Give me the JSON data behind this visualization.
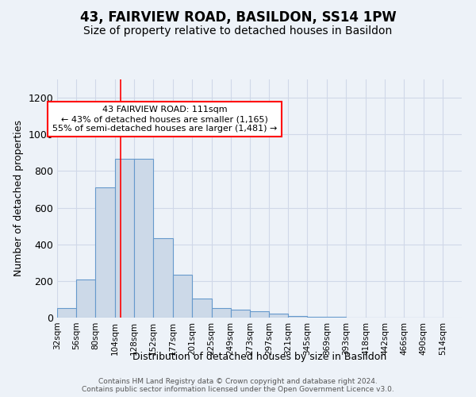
{
  "title1": "43, FAIRVIEW ROAD, BASILDON, SS14 1PW",
  "title2": "Size of property relative to detached houses in Basildon",
  "xlabel": "Distribution of detached houses by size in Basildon",
  "ylabel": "Number of detached properties",
  "footnote": "Contains HM Land Registry data © Crown copyright and database right 2024.\nContains public sector information licensed under the Open Government Licence v3.0.",
  "bin_labels": [
    "32sqm",
    "56sqm",
    "80sqm",
    "104sqm",
    "128sqm",
    "152sqm",
    "177sqm",
    "201sqm",
    "225sqm",
    "249sqm",
    "273sqm",
    "297sqm",
    "321sqm",
    "345sqm",
    "369sqm",
    "393sqm",
    "418sqm",
    "442sqm",
    "466sqm",
    "490sqm",
    "514sqm"
  ],
  "bar_values": [
    50,
    210,
    710,
    868,
    868,
    435,
    233,
    105,
    50,
    45,
    35,
    20,
    10,
    5,
    3,
    2,
    2,
    1,
    1,
    1
  ],
  "bar_color": "#ccd9e8",
  "bar_edge_color": "#6699cc",
  "property_line_x": 111,
  "annotation_text": "43 FAIRVIEW ROAD: 111sqm\n← 43% of detached houses are smaller (1,165)\n55% of semi-detached houses are larger (1,481) →",
  "annotation_box_color": "white",
  "annotation_box_edge_color": "red",
  "ylim": [
    0,
    1300
  ],
  "yticks": [
    0,
    200,
    400,
    600,
    800,
    1000,
    1200
  ],
  "bin_edges": [
    32,
    56,
    80,
    104,
    128,
    152,
    177,
    201,
    225,
    249,
    273,
    297,
    321,
    345,
    369,
    393,
    418,
    442,
    466,
    490,
    514
  ],
  "background_color": "#edf2f8",
  "grid_color": "#d0d8e8",
  "title1_fontsize": 12,
  "title2_fontsize": 10,
  "footnote_fontsize": 6.5
}
